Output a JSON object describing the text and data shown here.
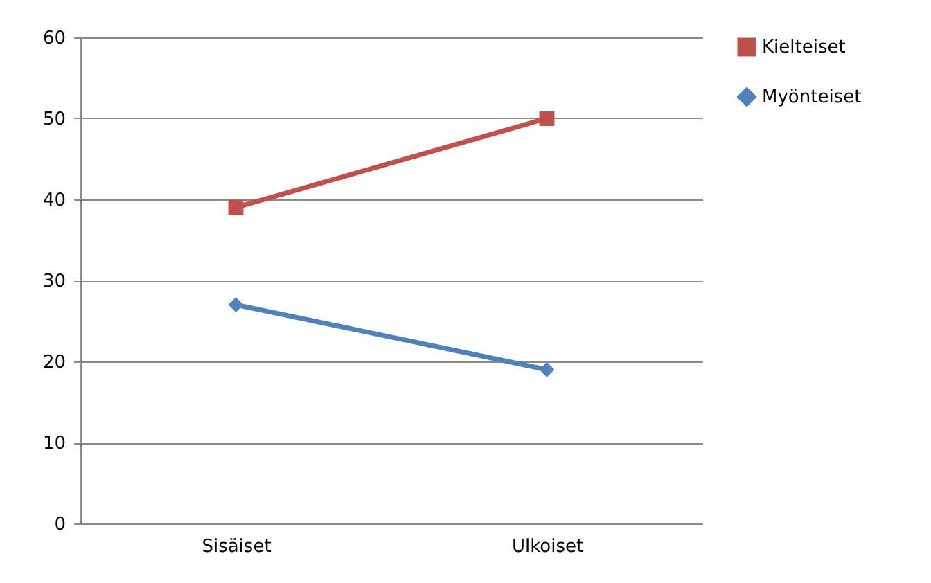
{
  "chart_data": {
    "type": "line",
    "categories": [
      "Sisäiset",
      "Ulkoiset"
    ],
    "series": [
      {
        "name": "Kielteiset",
        "color": "#c0504d",
        "values": [
          39,
          50
        ],
        "marker": "square"
      },
      {
        "name": "Myönteiset",
        "color": "#4f81bd",
        "values": [
          27,
          19
        ],
        "marker": "diamond"
      }
    ],
    "ylim": [
      0,
      60
    ],
    "yticks": [
      0,
      10,
      20,
      30,
      40,
      50,
      60
    ],
    "grid": "y",
    "legend": "right",
    "line_style": "solid"
  }
}
